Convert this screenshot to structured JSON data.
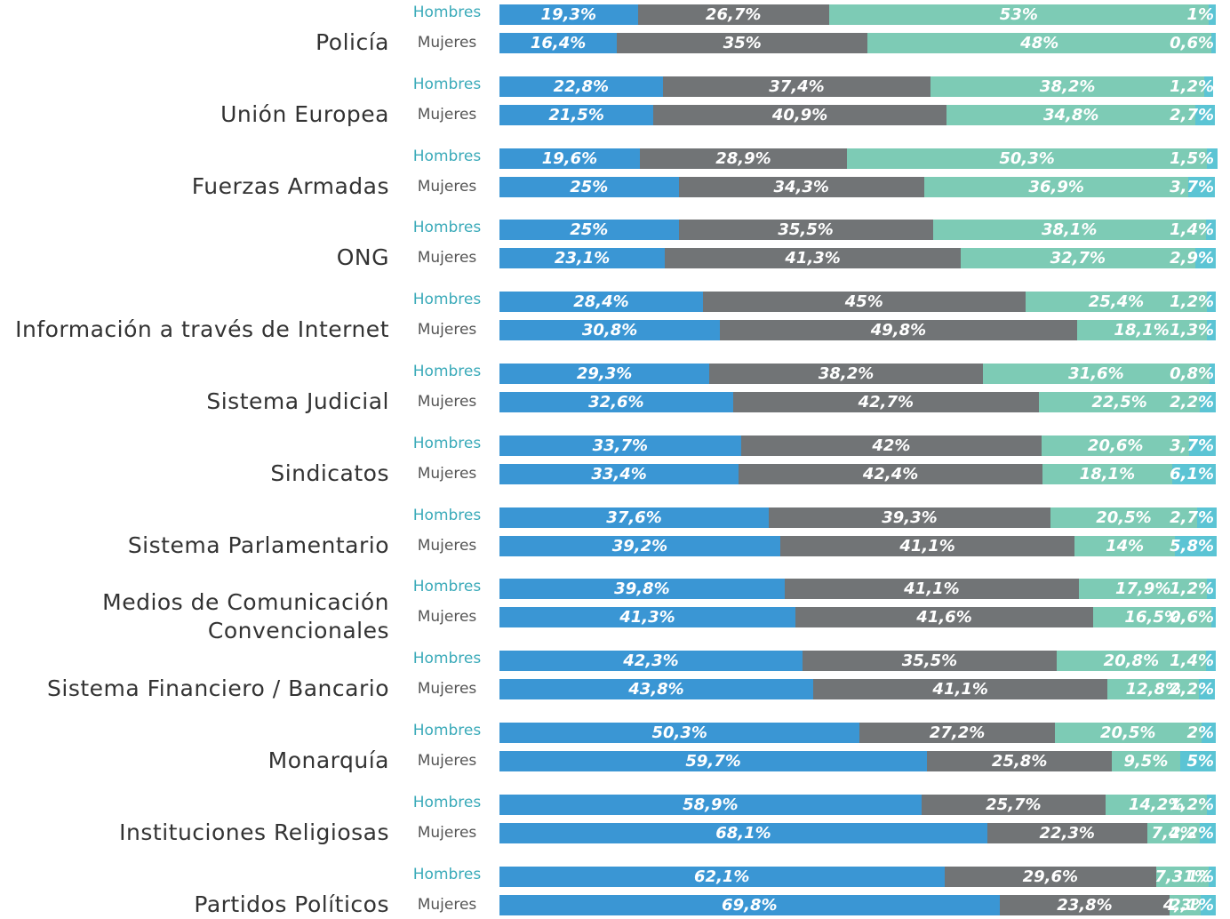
{
  "chart_data": {
    "type": "bar",
    "orientation": "horizontal",
    "stacked": true,
    "xlim": [
      0,
      100
    ],
    "categories": [
      "Policía",
      "Unión Europea",
      "Fuerzas Armadas",
      "ONG",
      "Información a través de Internet",
      "Sistema Judicial",
      "Sindicatos",
      "Sistema Parlamentario",
      "Medios de Comunicación Convencionales",
      "Sistema Financiero / Bancario",
      "Monarquía",
      "Instituciones Religiosas",
      "Partidos Políticos"
    ],
    "groups": [
      "Hombres",
      "Mujeres"
    ],
    "series": [
      {
        "color": "#3a96d4",
        "values": [
          [
            19.3,
            16.4
          ],
          [
            22.8,
            21.5
          ],
          [
            19.6,
            25
          ],
          [
            25,
            23.1
          ],
          [
            28.4,
            30.8
          ],
          [
            29.3,
            32.6
          ],
          [
            33.7,
            33.4
          ],
          [
            37.6,
            39.2
          ],
          [
            39.8,
            41.3
          ],
          [
            42.3,
            43.8
          ],
          [
            50.3,
            59.7
          ],
          [
            58.9,
            68.1
          ],
          [
            62.1,
            69.8
          ]
        ],
        "value_labels": [
          [
            "19,3%",
            "16,4%"
          ],
          [
            "22,8%",
            "21,5%"
          ],
          [
            "19,6%",
            "25%"
          ],
          [
            "25%",
            "23,1%"
          ],
          [
            "28,4%",
            "30,8%"
          ],
          [
            "29,3%",
            "32,6%"
          ],
          [
            "33,7%",
            "33,4%"
          ],
          [
            "37,6%",
            "39,2%"
          ],
          [
            "39,8%",
            "41,3%"
          ],
          [
            "42,3%",
            "43,8%"
          ],
          [
            "50,3%",
            "59,7%"
          ],
          [
            "58,9%",
            "68,1%"
          ],
          [
            "62,1%",
            "69,8%"
          ]
        ]
      },
      {
        "color": "#717476",
        "values": [
          [
            26.7,
            35
          ],
          [
            37.4,
            40.9
          ],
          [
            28.9,
            34.3
          ],
          [
            35.5,
            41.3
          ],
          [
            45,
            49.8
          ],
          [
            38.2,
            42.7
          ],
          [
            42,
            42.4
          ],
          [
            39.3,
            41.1
          ],
          [
            41.1,
            41.6
          ],
          [
            35.5,
            41.1
          ],
          [
            27.2,
            25.8
          ],
          [
            25.7,
            22.3
          ],
          [
            29.6,
            23.8
          ]
        ],
        "value_labels": [
          [
            "26,7%",
            "35%"
          ],
          [
            "37,4%",
            "40,9%"
          ],
          [
            "28,9%",
            "34,3%"
          ],
          [
            "35,5%",
            "41,3%"
          ],
          [
            "45%",
            "49,8%"
          ],
          [
            "38,2%",
            "42,7%"
          ],
          [
            "42%",
            "42,4%"
          ],
          [
            "39,3%",
            "41,1%"
          ],
          [
            "41,1%",
            "41,6%"
          ],
          [
            "35,5%",
            "41,1%"
          ],
          [
            "27,2%",
            "25,8%"
          ],
          [
            "25,7%",
            "22,3%"
          ],
          [
            "29,6%",
            "23,8%"
          ]
        ]
      },
      {
        "color": "#7dcbb5",
        "values": [
          [
            53,
            48
          ],
          [
            38.2,
            34.8
          ],
          [
            50.3,
            36.9
          ],
          [
            38.1,
            32.7
          ],
          [
            25.4,
            18.1
          ],
          [
            31.6,
            22.5
          ],
          [
            20.6,
            18.1
          ],
          [
            20.5,
            14
          ],
          [
            17.9,
            16.5
          ],
          [
            20.8,
            12.8
          ],
          [
            20.5,
            9.5
          ],
          [
            14.2,
            7.4
          ],
          [
            7.31,
            4.3
          ]
        ],
        "value_labels": [
          [
            "53%",
            "48%"
          ],
          [
            "38,2%",
            "34,8%"
          ],
          [
            "50,3%",
            "36,9%"
          ],
          [
            "38,1%",
            "32,7%"
          ],
          [
            "25,4%",
            "18,1%"
          ],
          [
            "31,6%",
            "22,5%"
          ],
          [
            "20,6%",
            "18,1%"
          ],
          [
            "20,5%",
            "14%"
          ],
          [
            "17,9%",
            "16,5%"
          ],
          [
            "20,8%",
            "12,8%"
          ],
          [
            "20,5%",
            "9,5%"
          ],
          [
            "14,2%",
            "7,4%"
          ],
          [
            "7,31%",
            "4,3%"
          ]
        ]
      },
      {
        "color": "#5bc4d4",
        "values": [
          [
            1,
            0.6
          ],
          [
            1.2,
            2.7
          ],
          [
            1.5,
            3.7
          ],
          [
            1.4,
            2.9
          ],
          [
            1.2,
            1.3
          ],
          [
            0.8,
            2.2
          ],
          [
            3.7,
            6.1
          ],
          [
            2.7,
            5.8
          ],
          [
            1.2,
            0.6
          ],
          [
            1.4,
            2.2
          ],
          [
            2,
            5
          ],
          [
            1.2,
            2.2
          ],
          [
            1,
            2.1
          ]
        ],
        "value_labels": [
          [
            "1%",
            "0,6%"
          ],
          [
            "1,2%",
            "2,7%"
          ],
          [
            "1,5%",
            "3,7%"
          ],
          [
            "1,4%",
            "2,9%"
          ],
          [
            "1,2%",
            "1,3%"
          ],
          [
            "0,8%",
            "2,2%"
          ],
          [
            "3,7%",
            "6,1%"
          ],
          [
            "2,7%",
            "5,8%"
          ],
          [
            "1,2%",
            "0,6%"
          ],
          [
            "1,4%",
            "2,2%"
          ],
          [
            "2%",
            "5%"
          ],
          [
            "1,2%",
            "2,2%"
          ],
          [
            "1%",
            "2,1%"
          ]
        ]
      }
    ]
  }
}
